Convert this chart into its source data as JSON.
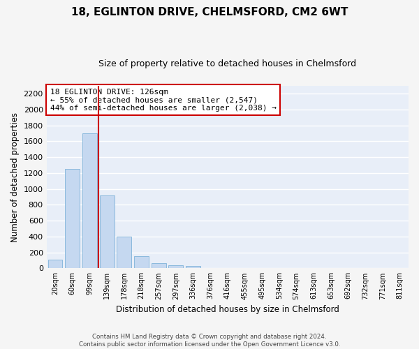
{
  "title": "18, EGLINTON DRIVE, CHELMSFORD, CM2 6WT",
  "subtitle": "Size of property relative to detached houses in Chelmsford",
  "xlabel": "Distribution of detached houses by size in Chelmsford",
  "ylabel": "Number of detached properties",
  "footer_line1": "Contains HM Land Registry data © Crown copyright and database right 2024.",
  "footer_line2": "Contains public sector information licensed under the Open Government Licence v3.0.",
  "bar_labels": [
    "20sqm",
    "60sqm",
    "99sqm",
    "139sqm",
    "178sqm",
    "218sqm",
    "257sqm",
    "297sqm",
    "336sqm",
    "376sqm",
    "416sqm",
    "455sqm",
    "495sqm",
    "534sqm",
    "574sqm",
    "613sqm",
    "653sqm",
    "692sqm",
    "732sqm",
    "771sqm",
    "811sqm"
  ],
  "bar_heights": [
    110,
    1250,
    1700,
    920,
    400,
    155,
    65,
    35,
    25,
    0,
    0,
    0,
    0,
    0,
    0,
    0,
    0,
    0,
    0,
    0,
    0
  ],
  "bar_color": "#c5d8f0",
  "bar_edgecolor": "#7fb3d9",
  "vline_color": "#cc0000",
  "ylim": [
    0,
    2300
  ],
  "yticks": [
    0,
    200,
    400,
    600,
    800,
    1000,
    1200,
    1400,
    1600,
    1800,
    2000,
    2200
  ],
  "annotation_text": "18 EGLINTON DRIVE: 126sqm\n← 55% of detached houses are smaller (2,547)\n44% of semi-detached houses are larger (2,038) →",
  "annotation_box_edgecolor": "#cc0000",
  "plot_bg_color": "#e8eef8",
  "fig_bg_color": "#f5f5f5",
  "grid_color": "#ffffff",
  "title_fontsize": 11,
  "subtitle_fontsize": 9,
  "annot_fontsize": 8
}
